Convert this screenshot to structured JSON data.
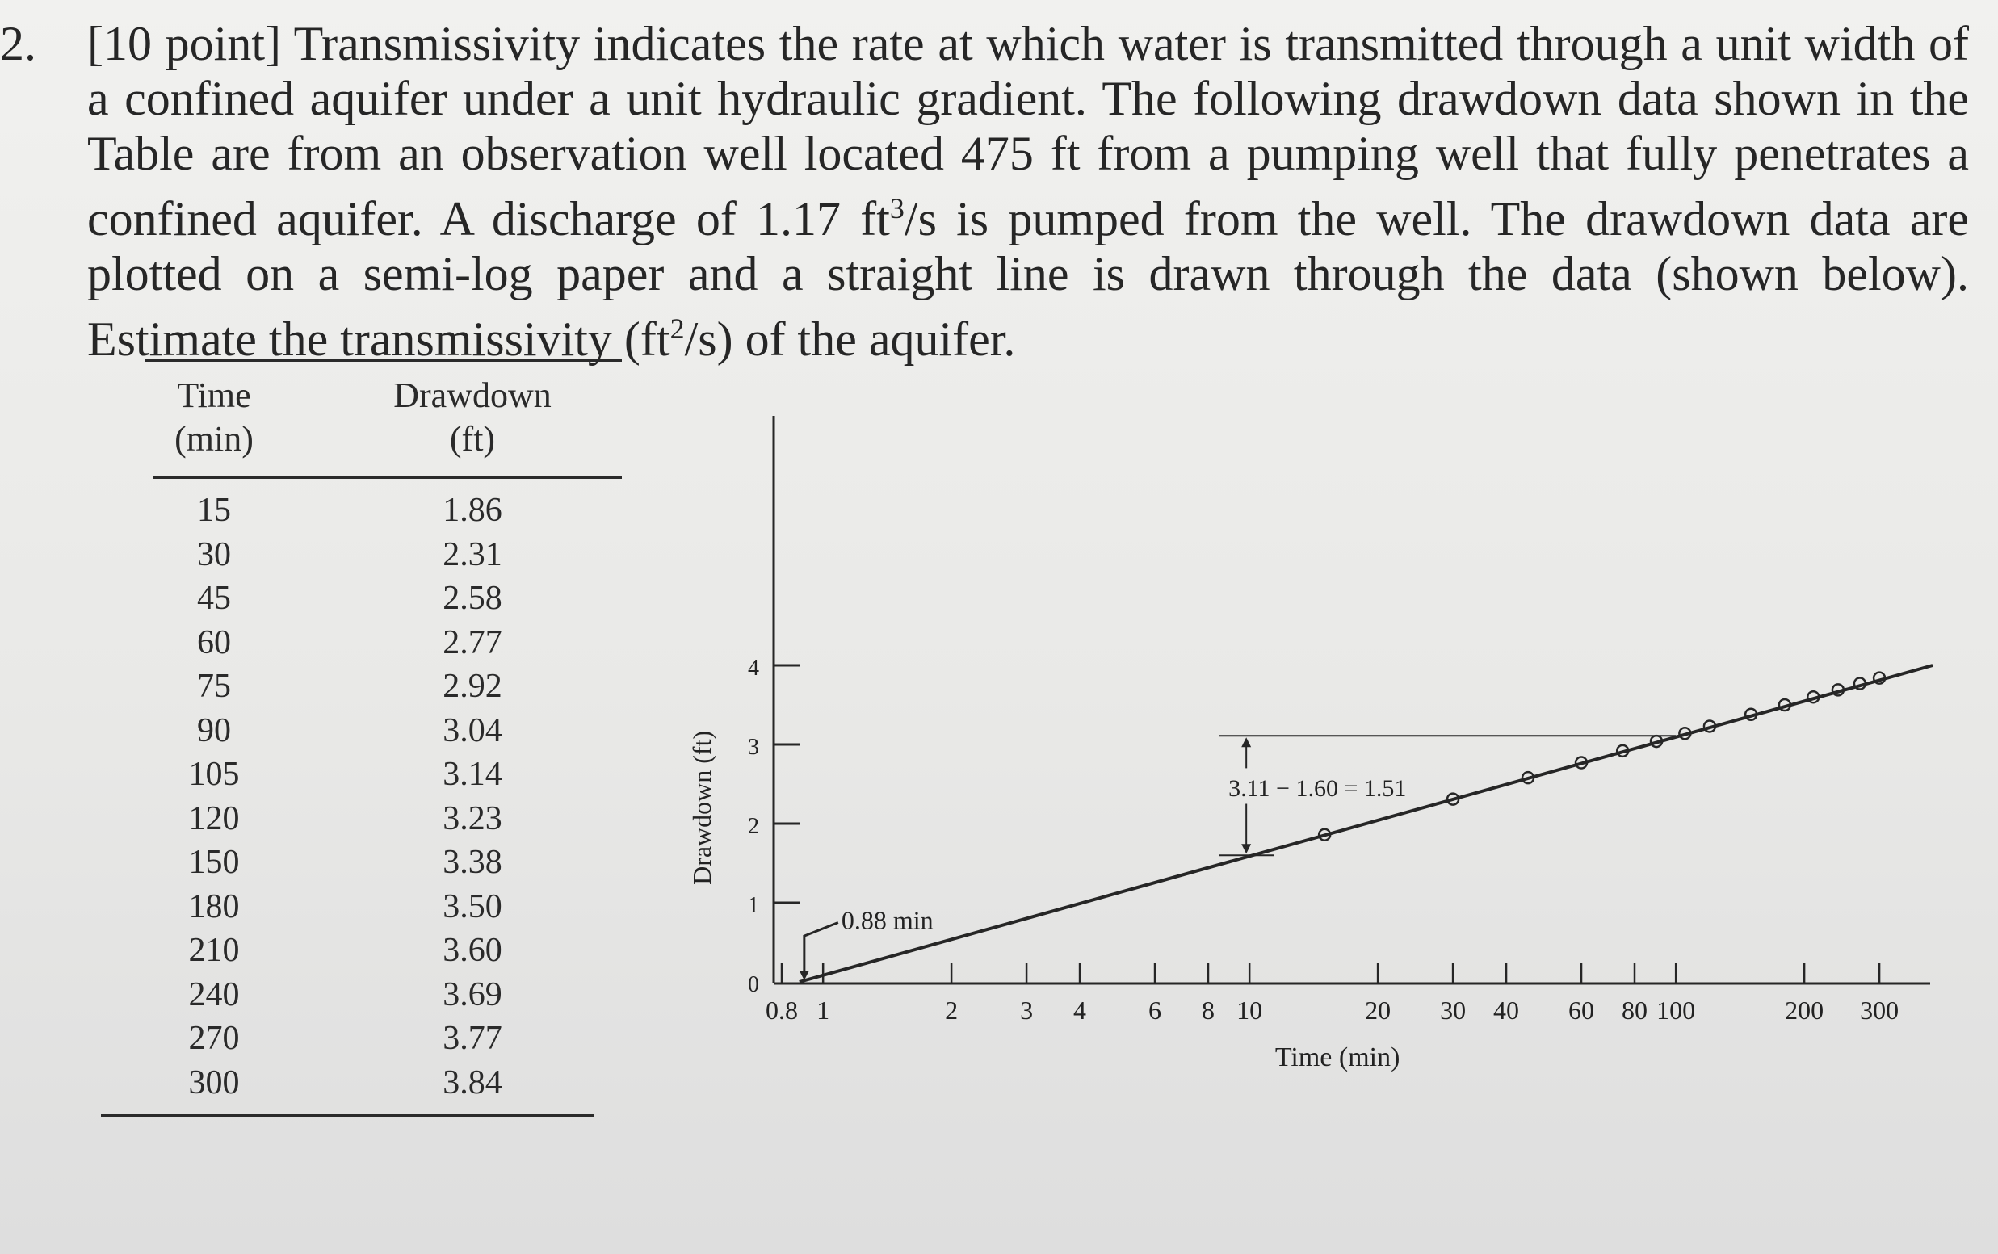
{
  "problem": {
    "number": "2.",
    "text_before_q": "[10 point] Transmissivity indicates the rate at which water is transmitted through a unit width of a confined aquifer under a unit hydraulic gradient. The following drawdown data shown in the Table are from an observation well located 475 ft from a pumping well that fully penetrates a confined aquifer. A discharge of 1.17 ft",
    "q_exponent": "3",
    "text_after_q": "/s is pumped from the well. The drawdown data are plotted on a semi-log paper and a straight line is drawn through the data (shown below). Estimate the transmissivity (ft",
    "t_exponent": "2",
    "text_end": "/s) of the aquifer."
  },
  "table": {
    "headers": [
      {
        "line1": "Time",
        "line2": "(min)"
      },
      {
        "line1": "Drawdown",
        "line2": "(ft)"
      }
    ],
    "rows": [
      [
        "15",
        "1.86"
      ],
      [
        "30",
        "2.31"
      ],
      [
        "45",
        "2.58"
      ],
      [
        "60",
        "2.77"
      ],
      [
        "75",
        "2.92"
      ],
      [
        "90",
        "3.04"
      ],
      [
        "105",
        "3.14"
      ],
      [
        "120",
        "3.23"
      ],
      [
        "150",
        "3.38"
      ],
      [
        "180",
        "3.50"
      ],
      [
        "210",
        "3.60"
      ],
      [
        "240",
        "3.69"
      ],
      [
        "270",
        "3.77"
      ],
      [
        "300",
        "3.84"
      ]
    ]
  },
  "chart_data": {
    "type": "scatter",
    "xscale": "log",
    "xlabel": "Time (min)",
    "ylabel": "Drawdown (ft)",
    "xlim": [
      0.7,
      400
    ],
    "ylim": [
      0,
      4.3
    ],
    "x_ticks": [
      "0.8",
      "1",
      "2",
      "3",
      "4",
      "6",
      "8",
      "10",
      "20",
      "30",
      "40",
      "60",
      "80",
      "100",
      "200",
      "300"
    ],
    "y_ticks": [
      "0",
      "1",
      "2",
      "3",
      "4"
    ],
    "points": {
      "x": [
        15,
        30,
        45,
        60,
        75,
        90,
        105,
        120,
        150,
        180,
        210,
        240,
        270,
        300
      ],
      "y": [
        1.86,
        2.31,
        2.58,
        2.77,
        2.92,
        3.04,
        3.14,
        3.23,
        3.38,
        3.5,
        3.6,
        3.69,
        3.77,
        3.84
      ]
    },
    "fit_line": {
      "x": [
        0.88,
        400
      ],
      "y": [
        0,
        4.0
      ]
    },
    "annotations": [
      {
        "text": "0.88 min",
        "x": 0.88,
        "y": 0
      },
      {
        "text": "3.11 − 1.60 = 1.51",
        "x": 10,
        "y_from": 1.6,
        "y_to": 3.11,
        "x_ref": 100
      }
    ]
  }
}
